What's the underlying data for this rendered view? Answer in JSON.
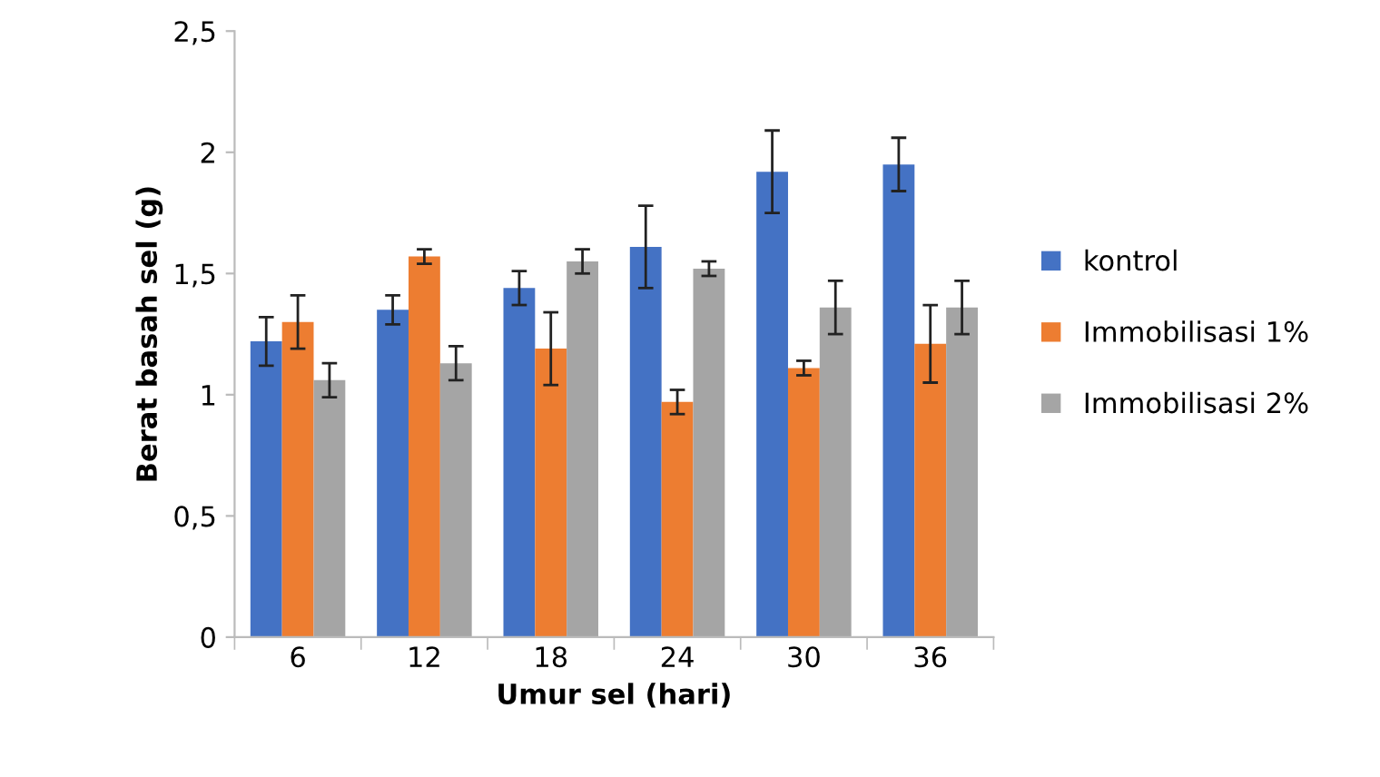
{
  "chart_data": {
    "type": "bar",
    "xlabel": "Umur sel (hari)",
    "ylabel": "Berat basah sel (g)",
    "categories": [
      "6",
      "12",
      "18",
      "24",
      "30",
      "36"
    ],
    "series": [
      {
        "name": "kontrol",
        "color": "#4472c4",
        "values": [
          1.22,
          1.35,
          1.44,
          1.61,
          1.92,
          1.95
        ],
        "errors": [
          0.1,
          0.06,
          0.07,
          0.17,
          0.17,
          0.11
        ]
      },
      {
        "name": "Immobilisasi 1%",
        "color": "#ed7d31",
        "values": [
          1.3,
          1.57,
          1.19,
          0.97,
          1.11,
          1.21
        ],
        "errors": [
          0.11,
          0.03,
          0.15,
          0.05,
          0.03,
          0.16
        ]
      },
      {
        "name": "Immobilisasi 2%",
        "color": "#a5a5a5",
        "values": [
          1.06,
          1.13,
          1.55,
          1.52,
          1.36,
          1.36
        ],
        "errors": [
          0.07,
          0.07,
          0.05,
          0.03,
          0.11,
          0.11
        ]
      }
    ],
    "ylim": [
      0,
      2.5
    ],
    "yticks": [
      0,
      {
        "value": 0.5,
        "label": "0,5"
      },
      1,
      {
        "value": 1.5,
        "label": "1,5"
      },
      2,
      {
        "value": 2.5,
        "label": "2,5"
      }
    ],
    "grid": false,
    "legend": "right"
  }
}
